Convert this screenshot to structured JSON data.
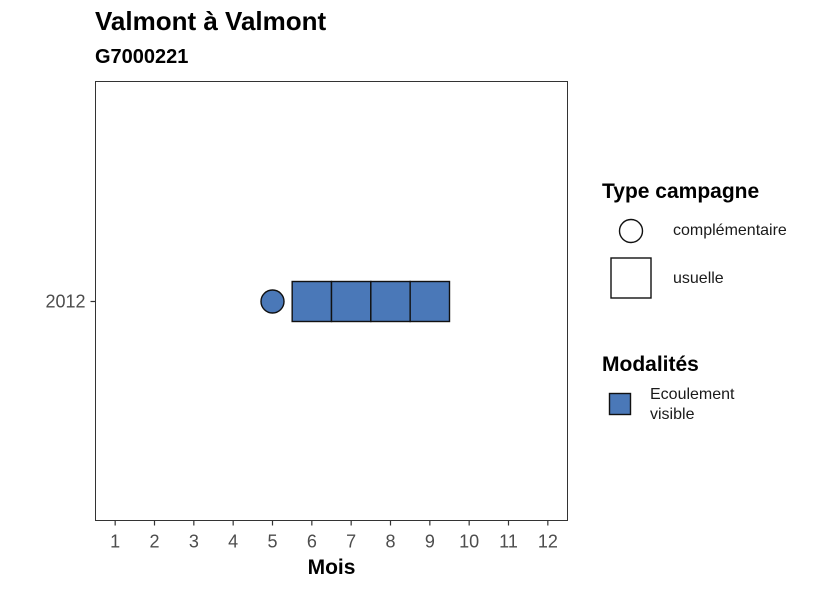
{
  "chart_data": {
    "type": "scatter",
    "title": "Valmont à Valmont",
    "subtitle": "G7000221",
    "xlabel": "Mois",
    "ylabel": "",
    "xlim": [
      0.5,
      12.5
    ],
    "x_ticks": [
      "1",
      "2",
      "3",
      "4",
      "5",
      "6",
      "7",
      "8",
      "9",
      "10",
      "11",
      "12"
    ],
    "y_categories": [
      "2012"
    ],
    "grid": false,
    "colors": {
      "ecoulement_visible": "#4a78b8",
      "outline": "#111111"
    },
    "points": [
      {
        "month": 5,
        "year": "2012",
        "campaign_type": "complémentaire",
        "modalite": "Ecoulement visible"
      },
      {
        "month": 6,
        "year": "2012",
        "campaign_type": "usuelle",
        "modalite": "Ecoulement visible"
      },
      {
        "month": 7,
        "year": "2012",
        "campaign_type": "usuelle",
        "modalite": "Ecoulement visible"
      },
      {
        "month": 8,
        "year": "2012",
        "campaign_type": "usuelle",
        "modalite": "Ecoulement visible"
      },
      {
        "month": 9,
        "year": "2012",
        "campaign_type": "usuelle",
        "modalite": "Ecoulement visible"
      }
    ],
    "legend": {
      "placement": "right",
      "shape_title": "Type campagne",
      "shape_entries": [
        {
          "label": "complémentaire",
          "shape": "circle"
        },
        {
          "label": "usuelle",
          "shape": "square"
        }
      ],
      "fill_title": "Modalités",
      "fill_entries": [
        {
          "label_line1": "Ecoulement",
          "label_line2": "visible",
          "color": "#4a78b8"
        }
      ]
    }
  }
}
